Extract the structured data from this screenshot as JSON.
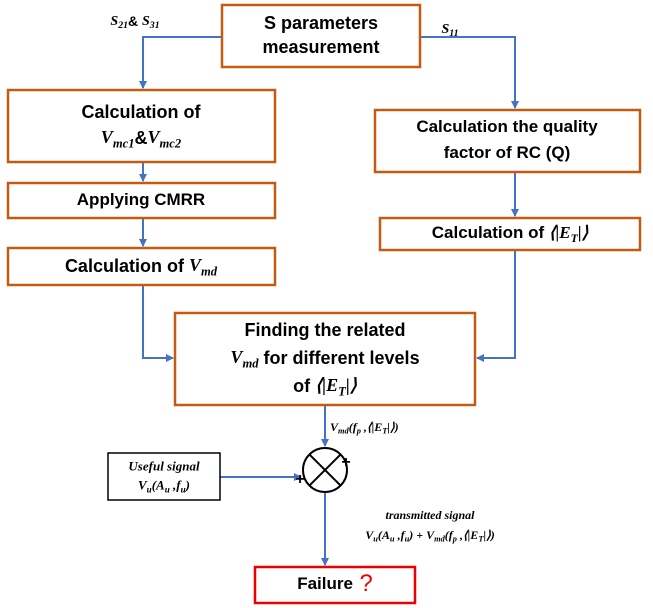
{
  "nodes": [
    {
      "lines": [
        [
          {
            "text": "S parameters",
            "style": "b"
          }
        ],
        [
          {
            "text": "measurement",
            "style": "b"
          }
        ]
      ]
    },
    {
      "lines": [
        [
          {
            "text": "Calculation of",
            "style": "b"
          }
        ],
        [
          {
            "text": "V",
            "style": "m"
          },
          {
            "text": "mc1",
            "style": "s"
          },
          {
            "text": "&",
            "style": "b"
          },
          {
            "text": "V",
            "style": "m"
          },
          {
            "text": "mc2",
            "style": "s"
          }
        ]
      ]
    },
    {
      "lines": [
        [
          {
            "text": "Applying CMRR",
            "style": "b"
          }
        ]
      ]
    },
    {
      "lines": [
        [
          {
            "text": "Calculation of ",
            "style": "b"
          },
          {
            "text": "V",
            "style": "m"
          },
          {
            "text": "md",
            "style": "s"
          }
        ]
      ]
    },
    {
      "lines": [
        [
          {
            "text": "Calculation the quality",
            "style": "b"
          }
        ],
        [
          {
            "text": "factor of RC (Q)",
            "style": "b"
          }
        ]
      ]
    },
    {
      "lines": [
        [
          {
            "text": "Calculation of ",
            "style": "b"
          },
          {
            "text": "⟨|E",
            "style": "m"
          },
          {
            "text": "T",
            "style": "s"
          },
          {
            "text": "|⟩",
            "style": "m"
          }
        ]
      ]
    },
    {
      "lines": [
        [
          {
            "text": "Finding the related",
            "style": "b"
          }
        ],
        [
          {
            "text": "V",
            "style": "m"
          },
          {
            "text": "md",
            "style": "s"
          },
          {
            "text": " for different levels",
            "style": "b"
          }
        ],
        [
          {
            "text": "of ",
            "style": "b"
          },
          {
            "text": "⟨|E",
            "style": "m"
          },
          {
            "text": "T",
            "style": "s"
          },
          {
            "text": "|⟩",
            "style": "m"
          }
        ]
      ]
    },
    {
      "lines": [
        [
          {
            "text": "Useful signal",
            "style": "i"
          }
        ],
        [
          {
            "text": "V",
            "style": "m"
          },
          {
            "text": "u",
            "style": "s"
          },
          {
            "text": "(A",
            "style": "m"
          },
          {
            "text": "u",
            "style": "s"
          },
          {
            "text": " ,f",
            "style": "m"
          },
          {
            "text": "u",
            "style": "s"
          },
          {
            "text": ")",
            "style": "m"
          }
        ]
      ]
    },
    {
      "lines": [
        [
          {
            "text": "Failure",
            "style": "b"
          },
          {
            "text": " ?",
            "style": "q"
          }
        ]
      ]
    }
  ],
  "labels": [
    {
      "lines": [
        [
          {
            "text": "S",
            "style": "m"
          },
          {
            "text": "21",
            "style": "s"
          },
          {
            "text": "& ",
            "style": "b"
          },
          {
            "text": "S",
            "style": "m"
          },
          {
            "text": "31",
            "style": "s"
          }
        ]
      ]
    },
    {
      "lines": [
        [
          {
            "text": "S",
            "style": "m"
          },
          {
            "text": "11",
            "style": "s"
          }
        ]
      ]
    },
    {
      "lines": [
        [
          {
            "text": "V",
            "style": "m"
          },
          {
            "text": "md",
            "style": "s"
          },
          {
            "text": "(f",
            "style": "m"
          },
          {
            "text": "p",
            "style": "s"
          },
          {
            "text": " ,⟨|E",
            "style": "m"
          },
          {
            "text": "T",
            "style": "s"
          },
          {
            "text": "|⟩)",
            "style": "m"
          }
        ]
      ]
    },
    {
      "lines": [
        [
          {
            "text": "transmitted signal",
            "style": "i"
          }
        ],
        [
          {
            "text": "V",
            "style": "m"
          },
          {
            "text": "u",
            "style": "s"
          },
          {
            "text": "(A",
            "style": "m"
          },
          {
            "text": "u",
            "style": "s"
          },
          {
            "text": " ,f",
            "style": "m"
          },
          {
            "text": "u",
            "style": "s"
          },
          {
            "text": ") + V",
            "style": "m"
          },
          {
            "text": "md",
            "style": "s"
          },
          {
            "text": "(f",
            "style": "m"
          },
          {
            "text": "p",
            "style": "s"
          },
          {
            "text": " ,⟨|E",
            "style": "m"
          },
          {
            "text": "T",
            "style": "s"
          },
          {
            "text": "|⟩)",
            "style": "m"
          }
        ]
      ]
    },
    {
      "lines": [
        [
          {
            "text": "+",
            "style": "b"
          }
        ]
      ]
    },
    {
      "lines": [
        [
          {
            "text": "+",
            "style": "b"
          }
        ]
      ]
    }
  ]
}
